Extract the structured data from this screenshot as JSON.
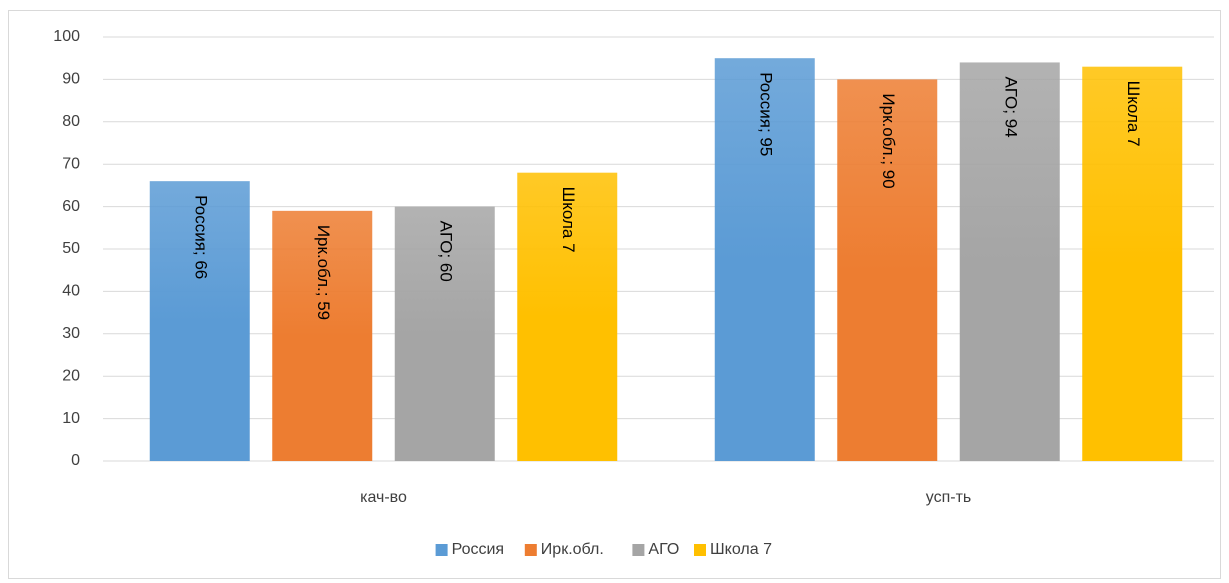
{
  "chart_data": {
    "type": "bar",
    "categories": [
      "кач-во",
      "усп-ть"
    ],
    "series": [
      {
        "name": "Россия",
        "color": "#5b9bd5",
        "values": [
          66,
          95
        ],
        "value_labels": [
          "Россия; 66",
          "Россия; 95"
        ]
      },
      {
        "name": "Ирк.обл.",
        "color": "#ed7d31",
        "values": [
          59,
          90
        ],
        "value_labels": [
          "Ирк.обл.; 59",
          "Ирк.обл.; 90"
        ]
      },
      {
        "name": "АГО",
        "color": "#a5a5a5",
        "values": [
          60,
          94
        ],
        "value_labels": [
          "АГО; 60",
          "АГО; 94"
        ]
      },
      {
        "name": "Школа 7",
        "color": "#ffc000",
        "values": [
          68,
          93
        ]
      }
    ],
    "ylim": [
      0,
      100
    ],
    "yticks": [
      0,
      10,
      20,
      30,
      40,
      50,
      60,
      70,
      80,
      90,
      100
    ],
    "grid": true,
    "legend": "bottom"
  }
}
